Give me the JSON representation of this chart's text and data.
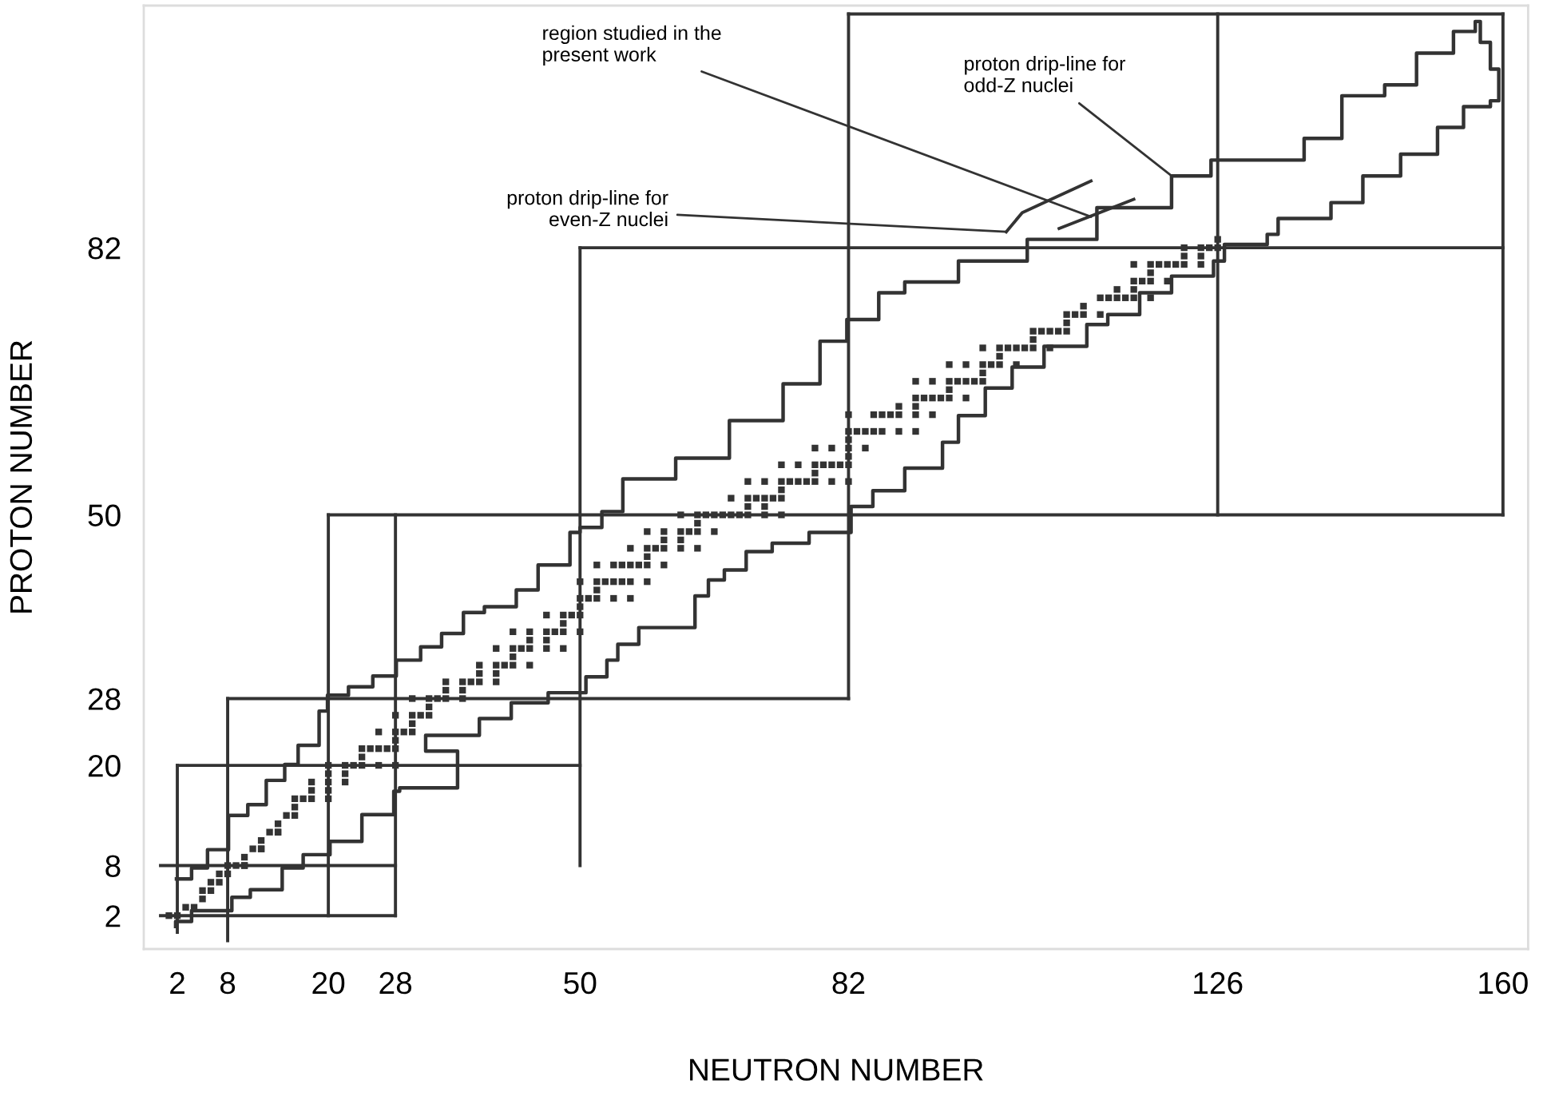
{
  "chart_data": {
    "type": "scatter",
    "xlabel": "NEUTRON NUMBER",
    "ylabel": "PROTON NUMBER",
    "xlim": [
      -2,
      163
    ],
    "ylim": [
      -2,
      111
    ],
    "grid": false,
    "xticks": [
      2,
      8,
      20,
      28,
      50,
      82,
      126,
      160
    ],
    "yticks": [
      2,
      8,
      20,
      28,
      50,
      82
    ],
    "legend": false,
    "marker": "square",
    "series": [
      {
        "type": "step",
        "marker": "none",
        "color": "#333333",
        "x": [
          1.9,
          3.7,
          5.6,
          8.1,
          10.4,
          12.6,
          14.8,
          16.4,
          18.9,
          19.9,
          22.4,
          25.3,
          28.1,
          31,
          33.5,
          36.1,
          38.6,
          42.4,
          45,
          48.8,
          50,
          52.6,
          55.1,
          61.4,
          67.8,
          74.2,
          78.6,
          81.8,
          85.6,
          88.7,
          95.1,
          103.3,
          111.6,
          120.5,
          125.2,
          131.9,
          136.3,
          140.8,
          145.9,
          149.7,
          154.1,
          156.7,
          157.3,
          158.5,
          159.5,
          158.5,
          155.3,
          152.2,
          147.8,
          143.3,
          139.5,
          133.2,
          131.9,
          126.8,
          125.5,
          120.5,
          116.7,
          112.9,
          110.4,
          105.3,
          101.5,
          98.3,
          95.1,
          93.2,
          88.7,
          84.9,
          82.3,
          77.3,
          72.9,
          69.8,
          67.2,
          65.3,
          63.7,
          57,
          54.5,
          53.2,
          50.7,
          46.2,
          41.8,
          38,
          31.6,
          35.4,
          28.5,
          27.8,
          24,
          20.2,
          17,
          14.5,
          10.7,
          8.5,
          3.7,
          1.8
        ],
        "values": [
          6.4,
          7.7,
          9.9,
          14,
          15.3,
          18.2,
          20.1,
          22.4,
          26.5,
          28.4,
          29.4,
          30.7,
          32.6,
          34.2,
          35.8,
          38.3,
          39,
          41,
          44,
          47.9,
          48.5,
          50.4,
          54.3,
          56.8,
          61.3,
          65.7,
          70.8,
          73.4,
          76.6,
          77.9,
          80.4,
          83,
          86.8,
          90.6,
          92.5,
          92.5,
          95.1,
          100.2,
          101.5,
          105.3,
          107.9,
          109.1,
          106.6,
          103.4,
          99.6,
          98.9,
          96.4,
          93.2,
          90.6,
          87.4,
          85.5,
          83.6,
          82.4,
          80.4,
          78.6,
          76.6,
          74,
          72.8,
          70.2,
          67.7,
          65.2,
          61.9,
          58.7,
          55.6,
          52.9,
          51,
          47.9,
          46.6,
          45.6,
          43.4,
          42.2,
          40.3,
          36.5,
          34.5,
          32.6,
          30.6,
          28.7,
          27.5,
          25.6,
          23.6,
          21.7,
          17.3,
          16.9,
          14.1,
          10.9,
          9.3,
          7.7,
          5.1,
          4.2,
          2.6,
          1.3,
          0.7
        ]
      },
      {
        "type": "line",
        "marker": "none",
        "color": "#333333",
        "x": [
          82,
          160
        ],
        "values": [
          110,
          110
        ]
      },
      {
        "type": "line",
        "marker": "none",
        "color": "#333333",
        "x": [
          50,
          160
        ],
        "values": [
          82,
          82
        ]
      },
      {
        "type": "line",
        "marker": "none",
        "color": "#333333",
        "x": [
          20,
          160
        ],
        "values": [
          50,
          50
        ]
      },
      {
        "type": "line",
        "marker": "none",
        "color": "#333333",
        "x": [
          8,
          82
        ],
        "values": [
          28,
          28
        ]
      },
      {
        "type": "line",
        "marker": "none",
        "color": "#333333",
        "x": [
          2,
          50
        ],
        "values": [
          20,
          20
        ]
      },
      {
        "type": "line",
        "marker": "none",
        "color": "#333333",
        "x": [
          0,
          28
        ],
        "values": [
          8,
          8
        ]
      },
      {
        "type": "line",
        "marker": "none",
        "color": "#333333",
        "x": [
          0,
          28
        ],
        "values": [
          2,
          2
        ]
      },
      {
        "type": "line",
        "marker": "none",
        "color": "#333333",
        "x": [
          2,
          2
        ],
        "values": [
          0,
          20
        ]
      },
      {
        "type": "line",
        "marker": "none",
        "color": "#333333",
        "x": [
          8,
          8
        ],
        "values": [
          -1,
          28
        ]
      },
      {
        "type": "line",
        "marker": "none",
        "color": "#333333",
        "x": [
          20,
          20
        ],
        "values": [
          2,
          50
        ]
      },
      {
        "type": "line",
        "marker": "none",
        "color": "#333333",
        "x": [
          28,
          28
        ],
        "values": [
          2,
          50
        ]
      },
      {
        "type": "line",
        "marker": "none",
        "color": "#333333",
        "x": [
          50,
          50
        ],
        "values": [
          8,
          82
        ]
      },
      {
        "type": "line",
        "marker": "none",
        "color": "#333333",
        "x": [
          82,
          82
        ],
        "values": [
          28,
          110
        ]
      },
      {
        "type": "line",
        "marker": "none",
        "color": "#333333",
        "x": [
          126,
          126
        ],
        "values": [
          50,
          110
        ]
      },
      {
        "type": "line",
        "marker": "none",
        "color": "#333333",
        "x": [
          160,
          160
        ],
        "values": [
          50,
          110
        ]
      },
      {
        "type": "line",
        "marker": "none",
        "color": "#333333",
        "x": [
          100.8,
          102.7,
          110.9
        ],
        "values": [
          83.9,
          86.2,
          90
        ]
      },
      {
        "type": "line",
        "marker": "none",
        "color": "#333333",
        "x": [
          107.1,
          116
        ],
        "values": [
          84.3,
          87.8
        ]
      },
      {
        "color": "#333333",
        "x": [
          1,
          2,
          3,
          4,
          5,
          5,
          6,
          6,
          7,
          7,
          8,
          8,
          9,
          10,
          10,
          10,
          11,
          12,
          12,
          12,
          13,
          14,
          14,
          14,
          15,
          16,
          16,
          16,
          17,
          18,
          20,
          18,
          20,
          18,
          20,
          22,
          20,
          22,
          20,
          22,
          23,
          24,
          26,
          28,
          24,
          24,
          25,
          26,
          27,
          28,
          28,
          26,
          28,
          29,
          30,
          30,
          28,
          30,
          31,
          32,
          32,
          30,
          32,
          33,
          34,
          36,
          34,
          36,
          34,
          36,
          37,
          38,
          40,
          38,
          40,
          38,
          40,
          41,
          42,
          44,
          42,
          40,
          42,
          43,
          44,
          46,
          48,
          44,
          46,
          42,
          44,
          46,
          47,
          48,
          50,
          48,
          46,
          48,
          49,
          50,
          50,
          50,
          51,
          52,
          54,
          56,
          52,
          50,
          52,
          53,
          54,
          55,
          56,
          58,
          52,
          54,
          55,
          56,
          57,
          58,
          60,
          58,
          56,
          58,
          59,
          60,
          62,
          64,
          60,
          62,
          58,
          60,
          62,
          63,
          64,
          66,
          64,
          62,
          64,
          65,
          66,
          67,
          68,
          69,
          70,
          72,
          74,
          70,
          72,
          68,
          70,
          71,
          72,
          73,
          74,
          74,
          70,
          72,
          74,
          75,
          76,
          77,
          78,
          80,
          82,
          78,
          74,
          76,
          78,
          79,
          80,
          81,
          82,
          82,
          78,
          80,
          82,
          84,
          82,
          82,
          83,
          84,
          85,
          86,
          88,
          90,
          82,
          85,
          86,
          87,
          88,
          90,
          92,
          88,
          90,
          90,
          91,
          92,
          93,
          94,
          96,
          94,
          90,
          92,
          94,
          95,
          96,
          97,
          98,
          98,
          94,
          96,
          98,
          99,
          100,
          102,
          100,
          98,
          100,
          101,
          102,
          103,
          104,
          106,
          104,
          104,
          105,
          106,
          107,
          108,
          108,
          108,
          109,
          110,
          112,
          110,
          112,
          113,
          114,
          115,
          116,
          118,
          114,
          116,
          116,
          117,
          118,
          120,
          118,
          116,
          118,
          119,
          120,
          121,
          122,
          124,
          122,
          124,
          122,
          124,
          125,
          126,
          126
        ],
        "values": [
          2,
          2,
          3,
          3,
          4,
          5,
          5,
          6,
          6,
          7,
          7,
          8,
          8,
          8,
          8,
          9,
          10,
          10,
          10,
          11,
          12,
          12,
          12,
          13,
          14,
          14,
          15,
          16,
          16,
          16,
          16,
          17,
          17,
          18,
          18,
          18,
          19,
          19,
          20,
          20,
          20,
          20,
          20,
          20,
          21,
          22,
          22,
          22,
          22,
          22,
          23,
          24,
          24,
          24,
          24,
          25,
          26,
          26,
          26,
          26,
          27,
          28,
          28,
          28,
          28,
          28,
          29,
          29,
          30,
          30,
          30,
          30,
          30,
          31,
          31,
          32,
          32,
          32,
          32,
          32,
          33,
          34,
          34,
          34,
          34,
          34,
          34,
          35,
          35,
          36,
          36,
          36,
          36,
          36,
          36,
          37,
          38,
          38,
          38,
          38,
          39,
          40,
          40,
          40,
          40,
          40,
          41,
          42,
          42,
          42,
          42,
          42,
          42,
          42,
          44,
          44,
          44,
          44,
          44,
          44,
          44,
          45,
          46,
          46,
          46,
          46,
          46,
          46,
          47,
          47,
          48,
          48,
          48,
          48,
          48,
          48,
          49,
          50,
          50,
          50,
          50,
          50,
          50,
          50,
          50,
          50,
          50,
          51,
          51,
          52,
          52,
          52,
          52,
          52,
          52,
          53,
          54,
          54,
          54,
          54,
          54,
          54,
          54,
          54,
          54,
          55,
          56,
          56,
          56,
          56,
          56,
          56,
          56,
          57,
          58,
          58,
          58,
          58,
          59,
          60,
          60,
          60,
          60,
          60,
          60,
          60,
          62,
          62,
          62,
          62,
          62,
          62,
          62,
          63,
          63,
          64,
          64,
          64,
          64,
          64,
          64,
          65,
          66,
          66,
          66,
          66,
          66,
          66,
          66,
          67,
          68,
          68,
          68,
          68,
          68,
          68,
          69,
          70,
          70,
          70,
          70,
          70,
          70,
          70,
          71,
          72,
          72,
          72,
          72,
          72,
          73,
          74,
          74,
          74,
          74,
          75,
          76,
          76,
          76,
          76,
          76,
          76,
          77,
          77,
          78,
          78,
          78,
          78,
          79,
          80,
          80,
          80,
          80,
          80,
          80,
          80,
          81,
          81,
          82,
          82,
          82,
          82,
          83
        ]
      }
    ],
    "annotations": [
      {
        "text": "region studied in the\npresent work",
        "x": 110.9,
        "y": 85.7
      },
      {
        "text": "proton drip-line for\neven-Z nuclei",
        "x": 100.8,
        "y": 83.9
      },
      {
        "text": "proton drip-line for\nodd-Z nuclei",
        "x": 120.5,
        "y": 90.6
      }
    ]
  }
}
